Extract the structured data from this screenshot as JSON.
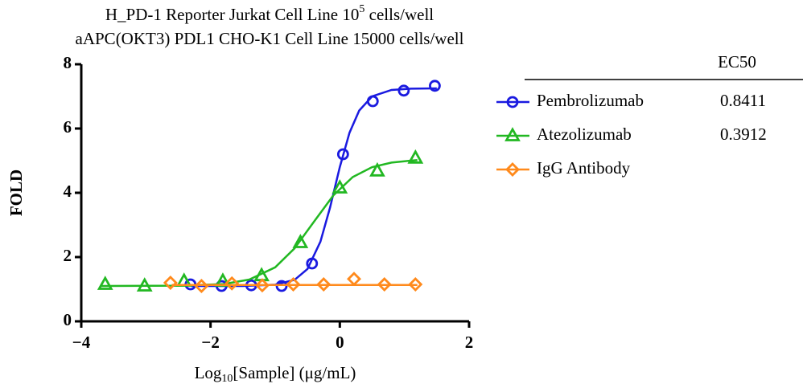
{
  "chart_data": {
    "type": "scatter",
    "title": [
      "H_PD-1 Reporter Jurkat Cell Line 10",
      "5",
      " cells/well"
    ],
    "subtitle": "aAPC(OKT3) PDL1 CHO-K1 Cell Line 15000 cells/well",
    "x_label": [
      "Log",
      "10",
      "[Sample] (μg/mL)"
    ],
    "y_label": "FOLD",
    "xlim": [
      -4,
      2
    ],
    "ylim": [
      0,
      8
    ],
    "xticks": [
      {
        "value": -4,
        "label": "−4"
      },
      {
        "value": -2,
        "label": "−2"
      },
      0,
      2
    ],
    "yticks": [
      0,
      2,
      4,
      6,
      8
    ],
    "legend_header": "EC50",
    "series": [
      {
        "name": "Pembrolizumab",
        "ec50": "0.8411",
        "color": "#1a1ae0",
        "marker": "circle",
        "x": [
          -2.31,
          -1.83,
          -1.37,
          -0.9,
          -0.43,
          0.05,
          0.51,
          0.99,
          1.47
        ],
        "values": [
          1.15,
          1.1,
          1.12,
          1.1,
          1.8,
          5.2,
          6.85,
          7.18,
          7.33
        ],
        "fit_x": [
          -2.3,
          -1.5,
          -1.0,
          -0.7,
          -0.5,
          -0.3,
          -0.15,
          0,
          0.15,
          0.3,
          0.5,
          0.8,
          1.1,
          1.5
        ],
        "fit_values": [
          1.1,
          1.1,
          1.14,
          1.29,
          1.63,
          2.48,
          3.55,
          4.8,
          5.87,
          6.56,
          7.0,
          7.2,
          7.24,
          7.25
        ]
      },
      {
        "name": "Atezolizumab",
        "ec50": "0.3912",
        "color": "#22b822",
        "marker": "triangle",
        "x": [
          -3.63,
          -3.02,
          -2.41,
          -1.81,
          -1.21,
          -0.61,
          0.0,
          0.58,
          1.17
        ],
        "values": [
          1.15,
          1.1,
          1.25,
          1.25,
          1.42,
          2.45,
          4.15,
          4.68,
          5.08
        ],
        "fit_x": [
          -3.7,
          -2.5,
          -1.8,
          -1.4,
          -1.0,
          -0.7,
          -0.4,
          -0.1,
          0.2,
          0.5,
          0.8,
          1.2
        ],
        "fit_values": [
          1.1,
          1.11,
          1.16,
          1.3,
          1.68,
          2.27,
          3.1,
          3.92,
          4.49,
          4.8,
          4.94,
          5.02
        ]
      },
      {
        "name": "IgG Antibody",
        "color": "#ff8a1c",
        "marker": "diamond",
        "x": [
          -2.62,
          -2.14,
          -1.67,
          -1.2,
          -0.72,
          -0.25,
          0.22,
          0.69,
          1.17
        ],
        "values": [
          1.2,
          1.1,
          1.18,
          1.12,
          1.15,
          1.15,
          1.32,
          1.15,
          1.15
        ],
        "fit_x": [
          -2.6,
          1.2
        ],
        "fit_values": [
          1.13,
          1.13
        ]
      }
    ]
  }
}
